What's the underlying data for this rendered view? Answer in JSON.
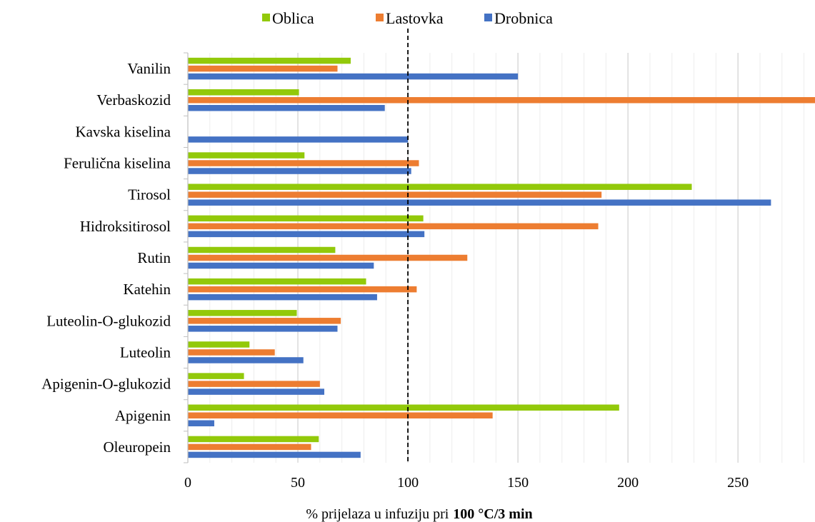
{
  "chart_data": {
    "type": "bar",
    "orientation": "horizontal",
    "categories": [
      "Vanilin",
      "Verbaskozid",
      "Kavska kiselina",
      "Ferulična kiselina",
      "Tirosol",
      "Hidroksitirosol",
      "Rutin",
      "Katehin",
      "Luteolin-O-glukozid",
      "Luteolin",
      "Apigenin-O-glukozid",
      "Apigenin",
      "Oleuropein"
    ],
    "series": [
      {
        "name": "Oblica",
        "color": "#92C90A",
        "values": [
          74,
          50.5,
          null,
          53,
          229,
          107,
          67,
          81,
          49.5,
          28,
          25.5,
          196,
          59.5
        ]
      },
      {
        "name": "Lastovka",
        "color": "#ED7D31",
        "values": [
          68,
          290,
          null,
          105,
          188,
          186.5,
          127,
          104,
          69.5,
          39.5,
          60,
          138.5,
          56
        ]
      },
      {
        "name": "Drobnica",
        "color": "#4472C4",
        "values": [
          150,
          89.5,
          100,
          101.5,
          265,
          107.5,
          84.5,
          86,
          68,
          52.5,
          62,
          12,
          78.5
        ]
      }
    ],
    "xlim": [
      0,
      285
    ],
    "xticks": [
      0,
      50,
      100,
      150,
      200,
      250
    ],
    "reference_line": 100,
    "xlabel_prefix": "% prijelaza u infuziju pri",
    "xlabel_bold": "100 °C/3 min",
    "legend_position": "top",
    "grid": true
  }
}
